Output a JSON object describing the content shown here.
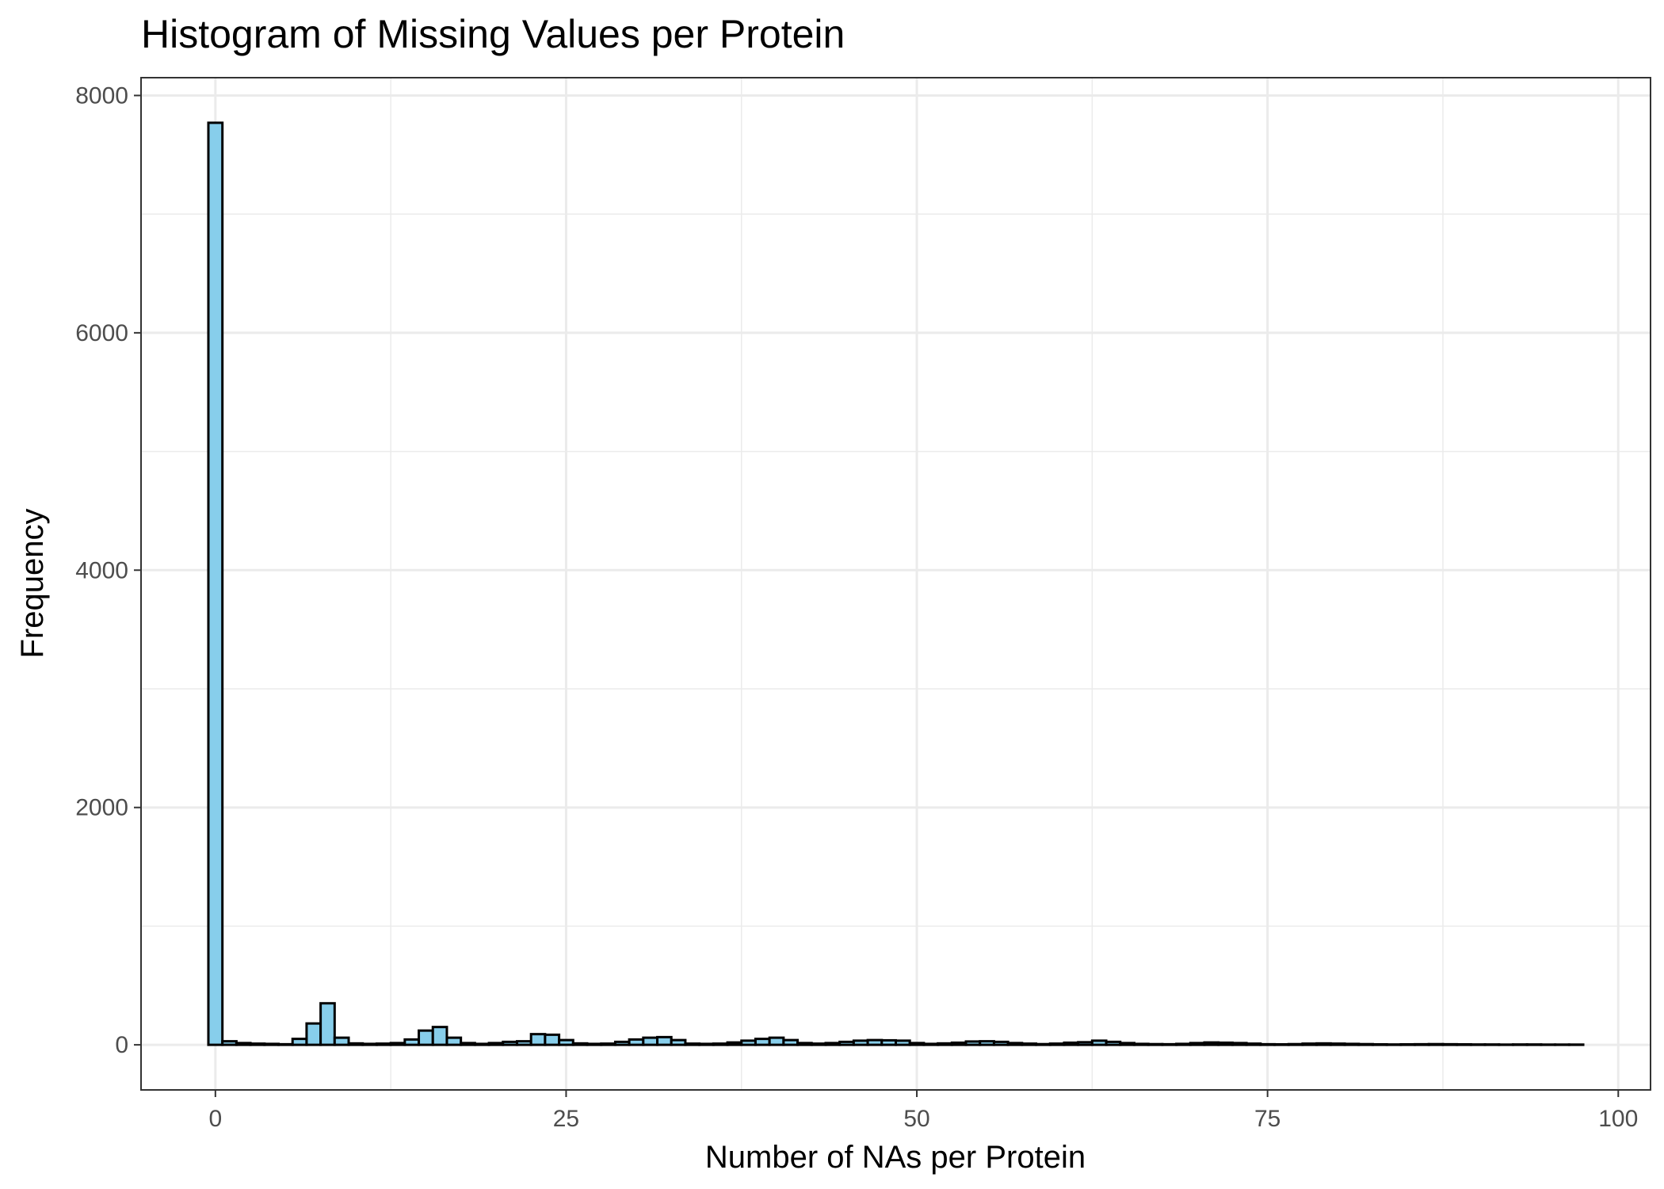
{
  "chart_data": {
    "type": "bar",
    "title": "Histogram of Missing Values per Protein",
    "xlabel": "Number of NAs per Protein",
    "ylabel": "Frequency",
    "xlim": [
      -5.3,
      102.3
    ],
    "ylim": [
      -380,
      8150
    ],
    "x_ticks": [
      0,
      25,
      50,
      75,
      100
    ],
    "x_tick_labels": [
      "0",
      "25",
      "50",
      "75",
      "100"
    ],
    "y_ticks": [
      0,
      2000,
      4000,
      6000,
      8000
    ],
    "y_tick_labels": [
      "0",
      "2000",
      "4000",
      "6000",
      "8000"
    ],
    "x_minor_ticks": [
      12.5,
      37.5,
      62.5,
      87.5
    ],
    "y_minor_ticks": [
      1000,
      3000,
      5000,
      7000
    ],
    "grid": true,
    "bin_width": 1,
    "bin_start": 0,
    "fill_color": "#87CEEB",
    "edge_color": "#000000",
    "values": [
      7770,
      30,
      15,
      10,
      8,
      5,
      50,
      180,
      350,
      60,
      12,
      8,
      10,
      15,
      45,
      120,
      150,
      60,
      15,
      8,
      15,
      25,
      30,
      90,
      85,
      40,
      12,
      8,
      10,
      25,
      45,
      60,
      65,
      40,
      10,
      8,
      10,
      20,
      35,
      50,
      60,
      40,
      15,
      10,
      15,
      25,
      35,
      40,
      38,
      35,
      15,
      8,
      12,
      18,
      28,
      30,
      25,
      15,
      10,
      6,
      10,
      18,
      22,
      35,
      25,
      15,
      8,
      6,
      5,
      8,
      15,
      20,
      18,
      15,
      10,
      5,
      4,
      6,
      10,
      12,
      10,
      8,
      6,
      4,
      3,
      4,
      5,
      6,
      5,
      4,
      3,
      3,
      2,
      3,
      3,
      2,
      2,
      2
    ]
  }
}
